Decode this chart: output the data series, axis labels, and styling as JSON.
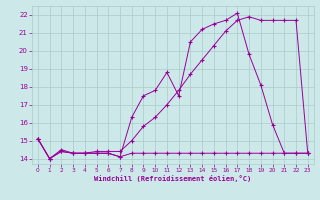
{
  "xlabel": "Windchill (Refroidissement éolien,°C)",
  "bg_color": "#cce8e8",
  "grid_color": "#aacccc",
  "line_color": "#990099",
  "xlim": [
    -0.5,
    23.5
  ],
  "ylim": [
    13.7,
    22.5
  ],
  "xticks": [
    0,
    1,
    2,
    3,
    4,
    5,
    6,
    7,
    8,
    9,
    10,
    11,
    12,
    13,
    14,
    15,
    16,
    17,
    18,
    19,
    20,
    21,
    22,
    23
  ],
  "yticks": [
    14,
    15,
    16,
    17,
    18,
    19,
    20,
    21,
    22
  ],
  "line1_x": [
    0,
    1,
    2,
    3,
    4,
    5,
    6,
    7,
    8,
    9,
    10,
    11,
    12,
    13,
    14,
    15,
    16,
    17,
    18,
    19,
    20,
    21,
    22,
    23
  ],
  "line1_y": [
    15.1,
    14.0,
    14.4,
    14.3,
    14.3,
    14.3,
    14.3,
    14.1,
    14.3,
    14.3,
    14.3,
    14.3,
    14.3,
    14.3,
    14.3,
    14.3,
    14.3,
    14.3,
    14.3,
    14.3,
    14.3,
    14.3,
    14.3,
    14.3
  ],
  "line2_x": [
    0,
    1,
    2,
    3,
    4,
    5,
    6,
    7,
    8,
    9,
    10,
    11,
    12,
    13,
    14,
    15,
    16,
    17,
    18,
    19,
    20,
    21,
    22,
    23
  ],
  "line2_y": [
    15.1,
    14.0,
    14.4,
    14.3,
    14.3,
    14.3,
    14.3,
    14.1,
    16.3,
    17.5,
    17.8,
    18.8,
    17.5,
    20.5,
    21.2,
    21.5,
    21.7,
    22.1,
    19.8,
    18.1,
    15.9,
    14.3,
    14.3,
    14.3
  ],
  "line3_x": [
    0,
    1,
    2,
    3,
    4,
    5,
    6,
    7,
    8,
    9,
    10,
    11,
    12,
    13,
    14,
    15,
    16,
    17,
    18,
    19,
    20,
    21,
    22,
    23
  ],
  "line3_y": [
    15.1,
    14.0,
    14.5,
    14.3,
    14.3,
    14.4,
    14.4,
    14.4,
    15.0,
    15.8,
    16.3,
    17.0,
    17.8,
    18.7,
    19.5,
    20.3,
    21.1,
    21.7,
    21.9,
    21.7,
    21.7,
    21.7,
    21.7,
    14.3
  ]
}
